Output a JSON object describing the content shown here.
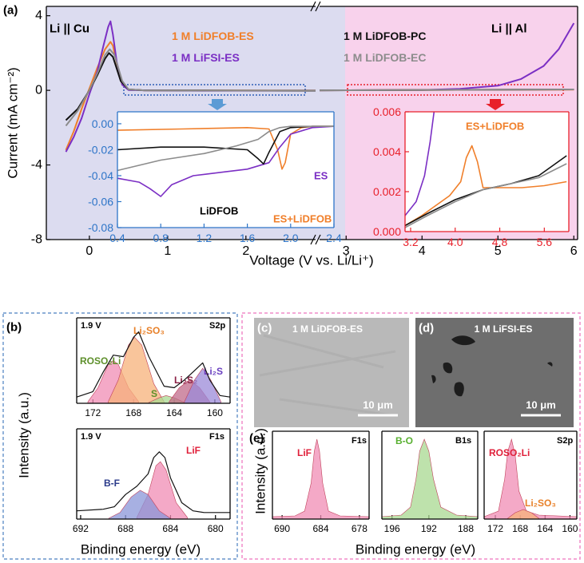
{
  "chart_data": [
    {
      "type": "line",
      "ylabel": "Current (mA cm⁻²)",
      "xlabel": "Voltage (V vs. Li/Li⁺)",
      "xlim": [
        -0.55,
        2.89
      ],
      "xticks": [
        0,
        1,
        2
      ],
      "ylim": [
        -8,
        4.5
      ],
      "yticks": [
        -8,
        -4,
        0,
        4
      ],
      "annotations": [
        {
          "text": "Li || Cu",
          "color": "#000000"
        }
      ],
      "series": [
        {
          "name": "1 M LiDFOB-ES",
          "color": "#f07f2a",
          "x": [
            -0.3,
            -0.2,
            -0.1,
            0,
            0.1,
            0.2,
            0.27,
            0.3,
            0.35,
            0.42,
            0.5,
            0.7,
            2.89
          ],
          "values": [
            -3.2,
            -2.2,
            -1.0,
            0.1,
            1.2,
            2.2,
            2.6,
            2.4,
            1.4,
            0.3,
            0.05,
            0,
            -0.01
          ]
        },
        {
          "name": "1 M LiFSI-ES",
          "color": "#7b2fc4",
          "x": [
            -0.3,
            -0.2,
            -0.1,
            0,
            0.1,
            0.18,
            0.24,
            0.27,
            0.3,
            0.35,
            0.42,
            0.5,
            0.7,
            1.5,
            2.89
          ],
          "values": [
            -3.3,
            -2.5,
            -1.5,
            -0.2,
            1.0,
            2.4,
            3.4,
            3.7,
            3.0,
            1.5,
            0.3,
            0.02,
            0,
            -0.02,
            -0.02
          ]
        },
        {
          "name": "1 M LiDFOB-PC",
          "color": "#111111",
          "x": [
            -0.3,
            -0.15,
            0,
            0.1,
            0.2,
            0.25,
            0.3,
            0.4,
            0.5,
            0.7,
            2.89
          ],
          "values": [
            -1.6,
            -1.0,
            0,
            0.8,
            1.7,
            2.0,
            1.8,
            0.5,
            0.05,
            0,
            -0.02
          ]
        },
        {
          "name": "1 M LiDFOB-EC",
          "color": "#8c8c8c",
          "x": [
            -0.3,
            -0.15,
            0,
            0.1,
            0.2,
            0.26,
            0.32,
            0.42,
            0.5,
            0.7,
            2.89
          ],
          "values": [
            -1.9,
            -1.1,
            0,
            0.9,
            1.9,
            2.2,
            1.9,
            0.5,
            0.05,
            0,
            -0.03
          ]
        }
      ]
    },
    {
      "type": "line",
      "xlim": [
        2.65,
        6.05
      ],
      "xticks": [
        3,
        4,
        5,
        6
      ],
      "ylim": [
        -8,
        4.5
      ],
      "annotations": [
        {
          "text": "Li || Al",
          "color": "#000000"
        }
      ],
      "series": [
        {
          "color": "#7b2fc4",
          "x": [
            2.65,
            4,
            4.5,
            5,
            5.3,
            5.6,
            5.8,
            6
          ],
          "values": [
            0,
            0.02,
            0.08,
            0.25,
            0.6,
            1.3,
            2.2,
            3.6
          ]
        },
        {
          "color": "#f07f2a",
          "x": [
            2.65,
            6
          ],
          "values": [
            0,
            0.04
          ]
        },
        {
          "color": "#111111",
          "x": [
            2.65,
            6
          ],
          "values": [
            0,
            0.05
          ]
        },
        {
          "color": "#8c8c8c",
          "x": [
            2.65,
            6
          ],
          "values": [
            0,
            0.05
          ]
        }
      ]
    },
    {
      "type": "line",
      "xlim": [
        0.4,
        2.4
      ],
      "xticks": [
        0.4,
        0.8,
        1.2,
        1.6,
        {
          "value": 2,
          "label": "2.0"
        },
        2.4
      ],
      "ylim": [
        -0.08,
        0.0092
      ],
      "yticks": [
        -0.08,
        -0.06,
        -0.04,
        -0.02,
        {
          "value": 0,
          "label": "0.00"
        }
      ],
      "annotations": [
        {
          "text": "ES",
          "color": "#7b2fc4"
        },
        {
          "text": "LiDFOB",
          "color": "#000000"
        },
        {
          "text": "ES+LiDFOB",
          "color": "#f07f2a"
        }
      ],
      "series": [
        {
          "color": "#f07f2a",
          "x": [
            0.4,
            1.0,
            1.6,
            1.8,
            1.88,
            1.92,
            1.95,
            2.0,
            2.1,
            2.2,
            2.4
          ],
          "values": [
            -0.005,
            -0.004,
            -0.003,
            -0.004,
            -0.02,
            -0.035,
            -0.03,
            -0.008,
            -0.003,
            -0.002,
            -0.002
          ]
        },
        {
          "color": "#7b2fc4",
          "x": [
            0.4,
            0.6,
            0.7,
            0.8,
            0.9,
            1.1,
            1.4,
            1.6,
            1.8,
            1.9,
            2.0,
            2.2,
            2.4
          ],
          "values": [
            -0.042,
            -0.045,
            -0.05,
            -0.056,
            -0.047,
            -0.04,
            -0.037,
            -0.035,
            -0.03,
            -0.018,
            -0.008,
            -0.003,
            -0.002
          ]
        },
        {
          "color": "#111111",
          "x": [
            0.4,
            0.8,
            1.2,
            1.6,
            1.7,
            1.75,
            1.8,
            1.9,
            2.0,
            2.2,
            2.4
          ],
          "values": [
            -0.02,
            -0.018,
            -0.018,
            -0.02,
            -0.027,
            -0.031,
            -0.022,
            -0.006,
            -0.003,
            -0.002,
            -0.002
          ]
        },
        {
          "color": "#8c8c8c",
          "x": [
            0.4,
            0.8,
            1.2,
            1.5,
            1.7,
            1.8,
            1.9,
            2.0,
            2.2,
            2.4
          ],
          "values": [
            -0.036,
            -0.028,
            -0.023,
            -0.017,
            -0.012,
            -0.006,
            -0.003,
            -0.002,
            -0.002,
            -0.002
          ]
        }
      ]
    },
    {
      "type": "line",
      "xlim": [
        3.1,
        6.04
      ],
      "xticks": [
        3.2,
        {
          "value": 4,
          "label": "4.0"
        },
        4.8,
        5.6
      ],
      "ylim": [
        0,
        0.006
      ],
      "yticks": [
        {
          "value": 0,
          "label": "0.000"
        },
        0.002,
        0.004,
        0.006
      ],
      "annotations": [
        {
          "text": "ES+LiDFOB",
          "color": "#f07f2a"
        }
      ],
      "series": [
        {
          "color": "#7b2fc4",
          "x": [
            3.1,
            3.3,
            3.45,
            3.55,
            3.62
          ],
          "values": [
            0.0008,
            0.0015,
            0.0028,
            0.0045,
            0.006
          ]
        },
        {
          "color": "#f07f2a",
          "x": [
            3.1,
            3.4,
            3.7,
            3.9,
            4.1,
            4.2,
            4.3,
            4.4,
            4.5,
            4.8,
            5.2,
            5.6,
            6.0
          ],
          "values": [
            0.0003,
            0.0008,
            0.0014,
            0.0018,
            0.0025,
            0.0037,
            0.0043,
            0.0035,
            0.0022,
            0.0022,
            0.0022,
            0.0023,
            0.0025
          ]
        },
        {
          "color": "#111111",
          "x": [
            3.1,
            3.5,
            4.0,
            4.5,
            5.0,
            5.5,
            6.0
          ],
          "values": [
            0.0003,
            0.0009,
            0.0016,
            0.0021,
            0.0024,
            0.0028,
            0.0038
          ]
        },
        {
          "color": "#8c8c8c",
          "x": [
            3.1,
            3.5,
            4.0,
            4.5,
            5.0,
            5.5,
            6.0
          ],
          "values": [
            0.0002,
            0.0008,
            0.0015,
            0.0021,
            0.0024,
            0.0027,
            0.0034
          ]
        }
      ]
    },
    {
      "type": "line",
      "ylabel": "Intensity (a.u.)",
      "xlim": [
        173.6,
        158.5
      ],
      "xticks": [
        172,
        168,
        164,
        160
      ],
      "ylim": [
        0,
        1.1
      ],
      "annotations": [
        {
          "text": "1.9 V",
          "color": "#000000"
        },
        {
          "text": "S2p",
          "color": "#000000"
        }
      ],
      "series": [
        {
          "name": "ROSO₂Li",
          "color": "#f08cb4",
          "label_color": "#5d8f2a",
          "fill": true,
          "x": [
            172.5,
            171.5,
            170.5,
            170,
            169.5,
            168.5,
            167.5
          ],
          "values": [
            0.02,
            0.2,
            0.5,
            0.55,
            0.5,
            0.2,
            0.02
          ]
        },
        {
          "name": "Li₂SO₃",
          "color": "#f7b27a",
          "label_color": "#e8812a",
          "fill": true,
          "x": [
            170.5,
            169.5,
            168.5,
            167.9,
            167.2,
            166,
            165
          ],
          "values": [
            0.02,
            0.3,
            0.75,
            0.85,
            0.75,
            0.25,
            0.02
          ]
        },
        {
          "name": "S",
          "color": "#a8d890",
          "label_color": "#5d8f2a",
          "fill": true,
          "x": [
            166.5,
            165.5,
            164.8,
            164,
            163
          ],
          "values": [
            0.01,
            0.07,
            0.1,
            0.07,
            0.01
          ]
        },
        {
          "name": "Li₂S₂",
          "color": "#c06a8a",
          "label_color": "#8b2045",
          "fill": true,
          "x": [
            164.5,
            163.5,
            162.5,
            161.5,
            160.5
          ],
          "values": [
            0.02,
            0.2,
            0.3,
            0.2,
            0.02
          ]
        },
        {
          "name": "Li₂S",
          "color": "#9b8ad8",
          "label_color": "#6a3fc0",
          "fill": true,
          "x": [
            163,
            162,
            161.2,
            160.4,
            159.4
          ],
          "values": [
            0.02,
            0.3,
            0.45,
            0.3,
            0.02
          ]
        },
        {
          "color": "#111111",
          "x": [
            173.6,
            172,
            171,
            170,
            169,
            168,
            167.5,
            166.5,
            165,
            164,
            163,
            162,
            161.2,
            160.5,
            159.5,
            158.5
          ],
          "values": [
            0.08,
            0.15,
            0.4,
            0.62,
            0.6,
            0.85,
            0.92,
            0.6,
            0.22,
            0.2,
            0.3,
            0.42,
            0.52,
            0.3,
            0.1,
            0.08
          ]
        }
      ]
    },
    {
      "type": "line",
      "xlabel": "Binding energy (eV)",
      "xlim": [
        692.35,
        678.7
      ],
      "xticks": [
        692,
        688,
        684,
        680
      ],
      "ylim": [
        0,
        1.1
      ],
      "annotations": [
        {
          "text": "1.9 V",
          "color": "#000000"
        },
        {
          "text": "F1s",
          "color": "#000000"
        }
      ],
      "series": [
        {
          "name": "LiF",
          "color": "#f08cb4",
          "label_color": "#e0203a",
          "fill": true,
          "x": [
            687,
            686,
            685.3,
            684.9,
            684.4,
            683.5,
            682.5
          ],
          "values": [
            0.02,
            0.3,
            0.65,
            0.7,
            0.6,
            0.2,
            0.02
          ]
        },
        {
          "name": "B-F",
          "color": "#8a96d8",
          "label_color": "#2a3a8a",
          "fill": true,
          "x": [
            689.5,
            688.5,
            687.5,
            686.7,
            686,
            685,
            684
          ],
          "values": [
            0.01,
            0.08,
            0.27,
            0.35,
            0.3,
            0.1,
            0.01
          ]
        },
        {
          "color": "#111111",
          "x": [
            692.35,
            690,
            689,
            688,
            687,
            686,
            685.5,
            685,
            684.5,
            684,
            683,
            682,
            681,
            678.7
          ],
          "values": [
            0.1,
            0.12,
            0.15,
            0.3,
            0.4,
            0.55,
            0.75,
            0.82,
            0.75,
            0.5,
            0.2,
            0.1,
            0.08,
            0.08
          ]
        }
      ]
    },
    {
      "type": "line",
      "ylabel": "Intensity (a.u.)",
      "xlabel": "Binding energy (eV)",
      "xlim": [
        691.5,
        676.5
      ],
      "xticks": [
        690,
        684,
        678
      ],
      "ylim": [
        0,
        1.1
      ],
      "annotations": [
        {
          "text": "F1s",
          "color": "#000000"
        }
      ],
      "series": [
        {
          "name": "LiF",
          "color": "#f08cb4",
          "label_color": "#e0203a",
          "fill": true,
          "x": [
            691.5,
            688,
            686.5,
            685.5,
            685,
            684.6,
            684.2,
            683.7,
            682.8,
            681,
            676.5
          ],
          "values": [
            0.03,
            0.04,
            0.1,
            0.45,
            0.85,
            1.0,
            0.85,
            0.45,
            0.1,
            0.04,
            0.03
          ]
        }
      ]
    },
    {
      "type": "line",
      "xlim": [
        197.1,
        186.7
      ],
      "xticks": [
        196,
        192,
        188
      ],
      "ylim": [
        0,
        1.1
      ],
      "annotations": [
        {
          "text": "B1s",
          "color": "#000000"
        }
      ],
      "series": [
        {
          "name": "B-O",
          "color": "#a8d890",
          "label_color": "#58b030",
          "fill": true,
          "x": [
            197.1,
            195,
            194,
            193.4,
            193,
            192.5,
            192,
            191.5,
            190.7,
            189,
            186.7
          ],
          "values": [
            0.03,
            0.05,
            0.15,
            0.5,
            0.85,
            1.0,
            0.85,
            0.5,
            0.15,
            0.05,
            0.03
          ]
        }
      ]
    },
    {
      "type": "line",
      "xlim": [
        173.8,
        158.9
      ],
      "xticks": [
        172,
        168,
        164,
        160
      ],
      "ylim": [
        0,
        1.1
      ],
      "annotations": [
        {
          "text": "S2p",
          "color": "#000000"
        }
      ],
      "series": [
        {
          "name": "ROSO₂Li",
          "color": "#f08cb4",
          "label_color": "#e0203a",
          "fill": true,
          "x": [
            173.8,
            171.5,
            170.5,
            170,
            169.4,
            168.8,
            168.2,
            167,
            165,
            158.9
          ],
          "values": [
            0.03,
            0.1,
            0.5,
            0.85,
            1.0,
            0.8,
            0.35,
            0.1,
            0.05,
            0.03
          ]
        },
        {
          "name": "Li₂SO₃",
          "color": "#f7b27a",
          "label_color": "#e8812a",
          "fill": true,
          "x": [
            170,
            168.8,
            167.5,
            166.2,
            165
          ],
          "values": [
            0.01,
            0.08,
            0.12,
            0.08,
            0.01
          ]
        }
      ]
    }
  ],
  "figure": {
    "panel_labels": [
      "(a)",
      "(b)",
      "(c)",
      "(d)",
      "(e)"
    ],
    "sem": [
      {
        "label": "1 M LiDFOB-ES",
        "scale_bar": "10 μm"
      },
      {
        "label": "1 M LiFSI-ES",
        "scale_bar": "10 μm"
      }
    ]
  }
}
